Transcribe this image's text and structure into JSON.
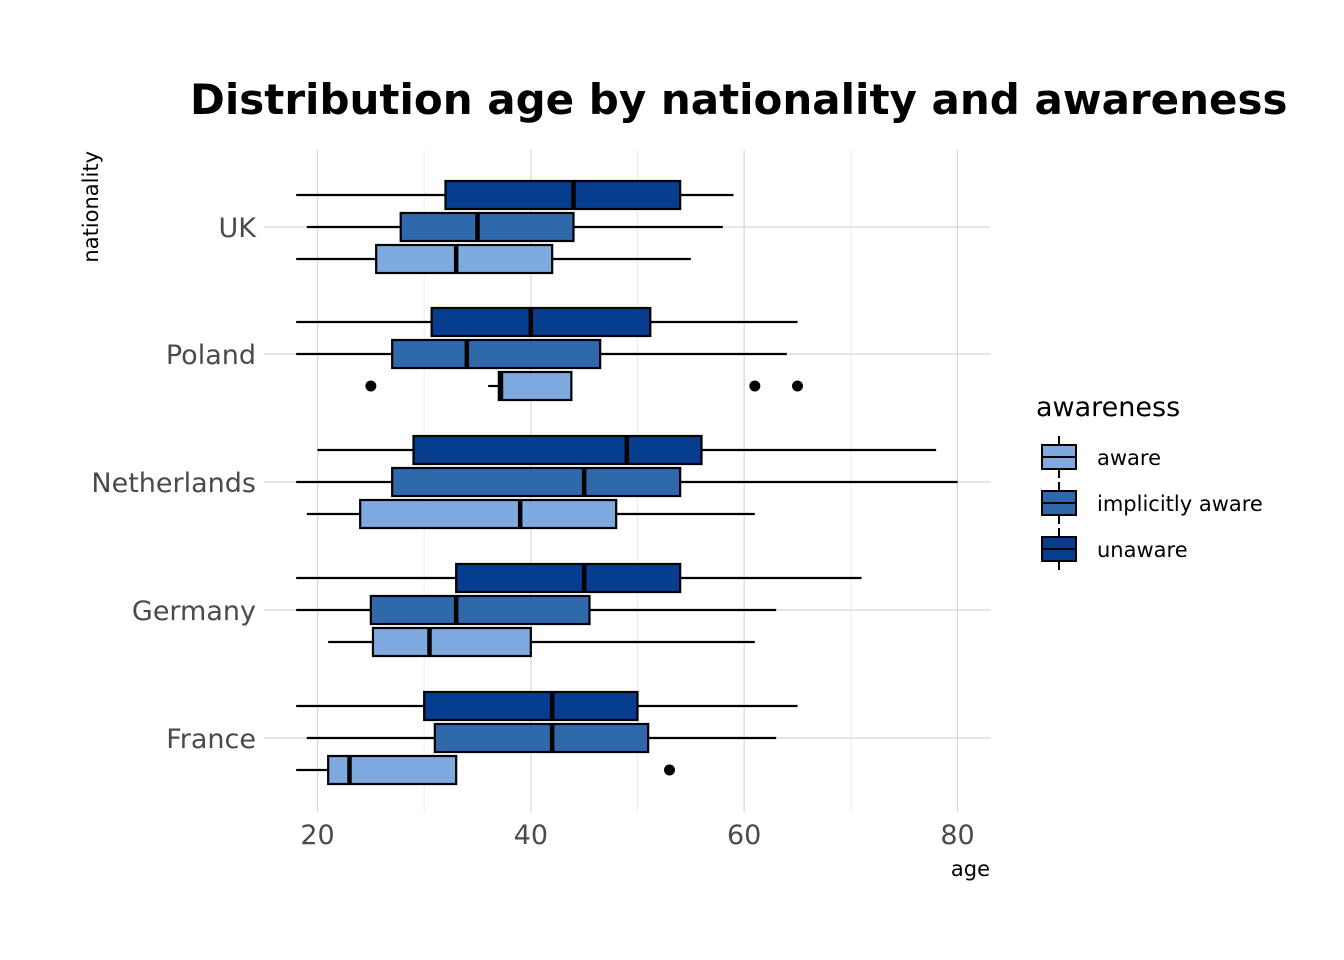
{
  "chart_data": {
    "type": "boxplot",
    "orientation": "horizontal",
    "title": "Distribution age by nationality and awareness",
    "xlabel": "age",
    "ylabel": "nationality",
    "xlim": [
      16,
      83
    ],
    "xticks": [
      20,
      40,
      60,
      80
    ],
    "grid": true,
    "categories": [
      "France",
      "Germany",
      "Netherlands",
      "Poland",
      "UK"
    ],
    "legend": {
      "title": "awareness",
      "position": "right",
      "entries": [
        "aware",
        "implicitly aware",
        "unaware"
      ]
    },
    "colors": {
      "aware": "#7faadf",
      "implicitly aware": "#3068ac",
      "unaware": "#073d8f"
    },
    "series": [
      {
        "name": "aware",
        "boxes": [
          {
            "category": "France",
            "whisker_low": 18,
            "q1": 21,
            "median": 23,
            "q3": 33,
            "whisker_high": 33,
            "outliers": [
              53
            ]
          },
          {
            "category": "Germany",
            "whisker_low": 21,
            "q1": 25.2,
            "median": 30.5,
            "q3": 40,
            "whisker_high": 61,
            "outliers": []
          },
          {
            "category": "Netherlands",
            "whisker_low": 19,
            "q1": 24,
            "median": 39,
            "q3": 48,
            "whisker_high": 61,
            "outliers": []
          },
          {
            "category": "Poland",
            "whisker_low": 36,
            "q1": 37,
            "median": 37.2,
            "q3": 43.8,
            "whisker_high": 43.8,
            "outliers": [
              25,
              61,
              65
            ]
          },
          {
            "category": "UK",
            "whisker_low": 18,
            "q1": 25.5,
            "median": 33,
            "q3": 42,
            "whisker_high": 55,
            "outliers": []
          }
        ]
      },
      {
        "name": "implicitly aware",
        "boxes": [
          {
            "category": "France",
            "whisker_low": 19,
            "q1": 31,
            "median": 42,
            "q3": 51,
            "whisker_high": 63,
            "outliers": []
          },
          {
            "category": "Germany",
            "whisker_low": 18,
            "q1": 25,
            "median": 33,
            "q3": 45.5,
            "whisker_high": 63,
            "outliers": []
          },
          {
            "category": "Netherlands",
            "whisker_low": 18,
            "q1": 27,
            "median": 45,
            "q3": 54,
            "whisker_high": 80,
            "outliers": []
          },
          {
            "category": "Poland",
            "whisker_low": 18,
            "q1": 27,
            "median": 34,
            "q3": 46.5,
            "whisker_high": 64,
            "outliers": []
          },
          {
            "category": "UK",
            "whisker_low": 19,
            "q1": 27.8,
            "median": 35,
            "q3": 44,
            "whisker_high": 58,
            "outliers": []
          }
        ]
      },
      {
        "name": "unaware",
        "boxes": [
          {
            "category": "France",
            "whisker_low": 18,
            "q1": 30,
            "median": 42,
            "q3": 50,
            "whisker_high": 65,
            "outliers": []
          },
          {
            "category": "Germany",
            "whisker_low": 18,
            "q1": 33,
            "median": 45,
            "q3": 54,
            "whisker_high": 71,
            "outliers": []
          },
          {
            "category": "Netherlands",
            "whisker_low": 20,
            "q1": 29,
            "median": 49,
            "q3": 56,
            "whisker_high": 78,
            "outliers": []
          },
          {
            "category": "Poland",
            "whisker_low": 18,
            "q1": 30.7,
            "median": 40,
            "q3": 51.2,
            "whisker_high": 65,
            "outliers": []
          },
          {
            "category": "UK",
            "whisker_low": 18,
            "q1": 32,
            "median": 44,
            "q3": 54,
            "whisker_high": 59,
            "outliers": []
          }
        ]
      }
    ]
  }
}
